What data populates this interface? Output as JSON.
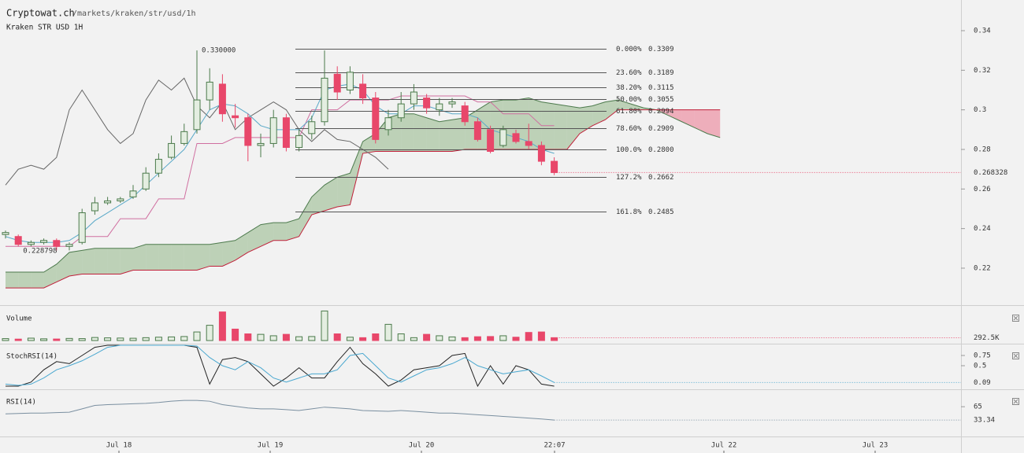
{
  "header": {
    "title": "Cryptowat.ch",
    "path": "/markets/kraken/str/usd/1h",
    "subtitle": "Kraken STR USD 1H"
  },
  "time_axis": {
    "labels": [
      "Jul 18",
      "Jul 19",
      "Jul 20",
      "22:07",
      "Jul 22",
      "Jul 23"
    ]
  },
  "chart_data": [
    {
      "type": "candlestick",
      "ylim": [
        0.2033,
        0.3555
      ],
      "yticks": [
        0.22,
        0.24,
        0.26,
        0.28,
        0.3,
        0.32,
        0.34
      ],
      "open": [
        0.237,
        0.236,
        0.232,
        0.233,
        0.234,
        0.231,
        0.233,
        0.249,
        0.253,
        0.254,
        0.256,
        0.26,
        0.268,
        0.276,
        0.283,
        0.29,
        0.305,
        0.313,
        0.297,
        0.296,
        0.282,
        0.283,
        0.296,
        0.281,
        0.288,
        0.294,
        0.318,
        0.31,
        0.313,
        0.306,
        0.29,
        0.296,
        0.303,
        0.306,
        0.3,
        0.303,
        0.302,
        0.294,
        0.29,
        0.282,
        0.288,
        0.284,
        0.282,
        0.274
      ],
      "close": [
        0.238,
        0.232,
        0.233,
        0.234,
        0.231,
        0.232,
        0.248,
        0.253,
        0.254,
        0.255,
        0.259,
        0.268,
        0.275,
        0.283,
        0.289,
        0.305,
        0.314,
        0.298,
        0.296,
        0.282,
        0.283,
        0.296,
        0.281,
        0.287,
        0.294,
        0.316,
        0.309,
        0.319,
        0.306,
        0.285,
        0.296,
        0.303,
        0.309,
        0.301,
        0.303,
        0.304,
        0.294,
        0.285,
        0.279,
        0.29,
        0.284,
        0.282,
        0.274,
        0.2683
      ],
      "high": [
        0.239,
        0.237,
        0.234,
        0.235,
        0.235,
        0.233,
        0.25,
        0.256,
        0.256,
        0.256,
        0.262,
        0.271,
        0.278,
        0.287,
        0.293,
        0.33,
        0.321,
        0.318,
        0.303,
        0.298,
        0.288,
        0.3,
        0.298,
        0.29,
        0.297,
        0.33,
        0.322,
        0.322,
        0.318,
        0.309,
        0.3,
        0.309,
        0.313,
        0.308,
        0.306,
        0.306,
        0.304,
        0.296,
        0.292,
        0.292,
        0.29,
        0.293,
        0.284,
        0.276
      ],
      "low": [
        0.235,
        0.231,
        0.231,
        0.232,
        0.229,
        0.229,
        0.232,
        0.247,
        0.252,
        0.253,
        0.255,
        0.259,
        0.266,
        0.275,
        0.282,
        0.288,
        0.3,
        0.294,
        0.291,
        0.274,
        0.276,
        0.281,
        0.279,
        0.279,
        0.285,
        0.292,
        0.305,
        0.308,
        0.303,
        0.283,
        0.287,
        0.294,
        0.3,
        0.298,
        0.297,
        0.301,
        0.292,
        0.284,
        0.278,
        0.281,
        0.283,
        0.28,
        0.272,
        0.267
      ],
      "up_color": "#4b7a4b",
      "up_fill": "#e4eee1",
      "down_color": "#e8476a",
      "span_a": [
        0.218,
        0.218,
        0.218,
        0.218,
        0.222,
        0.228,
        0.229,
        0.23,
        0.23,
        0.23,
        0.23,
        0.232,
        0.232,
        0.232,
        0.232,
        0.232,
        0.232,
        0.233,
        0.234,
        0.238,
        0.242,
        0.243,
        0.243,
        0.245,
        0.256,
        0.262,
        0.266,
        0.268,
        0.284,
        0.288,
        0.296,
        0.298,
        0.298,
        0.296,
        0.294,
        0.295,
        0.296,
        0.3,
        0.304,
        0.305,
        0.305,
        0.306,
        0.304,
        0.303,
        0.302,
        0.301,
        0.302,
        0.304,
        0.305,
        0.303,
        0.301,
        0.3,
        0.297,
        0.294,
        0.291,
        0.288,
        0.286
      ],
      "span_b": [
        0.21,
        0.21,
        0.21,
        0.21,
        0.213,
        0.216,
        0.217,
        0.217,
        0.217,
        0.217,
        0.219,
        0.219,
        0.219,
        0.219,
        0.219,
        0.219,
        0.221,
        0.221,
        0.224,
        0.228,
        0.231,
        0.234,
        0.234,
        0.236,
        0.247,
        0.249,
        0.251,
        0.252,
        0.278,
        0.279,
        0.279,
        0.279,
        0.279,
        0.279,
        0.279,
        0.279,
        0.28,
        0.28,
        0.28,
        0.28,
        0.28,
        0.28,
        0.28,
        0.28,
        0.28,
        0.288,
        0.292,
        0.295,
        0.3,
        0.3,
        0.3,
        0.3,
        0.3,
        0.3,
        0.3,
        0.3,
        0.3
      ],
      "tenkan": [
        0.236,
        0.234,
        0.233,
        0.233,
        0.233,
        0.234,
        0.238,
        0.244,
        0.248,
        0.252,
        0.256,
        0.262,
        0.268,
        0.274,
        0.28,
        0.29,
        0.3,
        0.303,
        0.302,
        0.298,
        0.292,
        0.29,
        0.29,
        0.29,
        0.296,
        0.31,
        0.312,
        0.313,
        0.31,
        0.302,
        0.298,
        0.298,
        0.302,
        0.302,
        0.3,
        0.298,
        0.298,
        0.296,
        0.29,
        0.288,
        0.286,
        0.284,
        0.28,
        0.278
      ],
      "kijun": [
        0.231,
        0.231,
        0.231,
        0.231,
        0.231,
        0.231,
        0.236,
        0.236,
        0.236,
        0.245,
        0.245,
        0.245,
        0.255,
        0.255,
        0.255,
        0.283,
        0.283,
        0.283,
        0.286,
        0.286,
        0.286,
        0.286,
        0.286,
        0.286,
        0.3,
        0.3,
        0.3,
        0.305,
        0.305,
        0.305,
        0.305,
        0.307,
        0.307,
        0.307,
        0.307,
        0.307,
        0.307,
        0.304,
        0.304,
        0.298,
        0.298,
        0.298,
        0.292,
        0.292
      ],
      "chikou": [
        0.262,
        0.27,
        0.272,
        0.27,
        0.276,
        0.3,
        0.31,
        0.3,
        0.29,
        0.283,
        0.288,
        0.305,
        0.315,
        0.31,
        0.316,
        0.302,
        0.296,
        0.304,
        0.29,
        0.296,
        0.3,
        0.304,
        0.3,
        0.29,
        0.284,
        0.29,
        0.285,
        0.284,
        0.28,
        0.276,
        0.27
      ],
      "fib_levels": [
        {
          "pct": "0.000%",
          "price": 0.3309
        },
        {
          "pct": "23.60%",
          "price": 0.3189
        },
        {
          "pct": "38.20%",
          "price": 0.3115
        },
        {
          "pct": "50.00%",
          "price": 0.3055
        },
        {
          "pct": "61.80%",
          "price": 0.2994
        },
        {
          "pct": "78.60%",
          "price": 0.2909
        },
        {
          "pct": "100.0%",
          "price": {
            "value": 0.28,
            "label": "0.2800"
          }
        },
        {
          "pct": "127.2%",
          "price": 0.2662
        },
        {
          "pct": "161.8%",
          "price": 0.2485
        }
      ],
      "high_annotation": {
        "value": 0.33,
        "label": "0.330000"
      },
      "low_annotation": 0.228798,
      "last": 0.268328
    },
    {
      "type": "bar",
      "label": "Volume",
      "ylim": [
        0,
        3300
      ],
      "values": [
        200,
        150,
        250,
        180,
        160,
        220,
        200,
        320,
        280,
        260,
        240,
        300,
        350,
        380,
        420,
        900,
        1600,
        3000,
        1200,
        700,
        650,
        500,
        650,
        400,
        420,
        3100,
        700,
        350,
        300,
        700,
        1700,
        700,
        300,
        650,
        500,
        380,
        300,
        400,
        420,
        500,
        350,
        850,
        900,
        300
      ],
      "last": {
        "value": 292.5,
        "label": "292.5K"
      }
    },
    {
      "type": "line",
      "label": "StochRSI(14)",
      "ylim": [
        0,
        1
      ],
      "yticks": [
        0.75,
        0.5
      ],
      "series": [
        {
          "color": "#222222",
          "values": [
            0,
            0,
            0.1,
            0.4,
            0.6,
            0.55,
            0.75,
            0.95,
            1,
            1,
            1,
            1,
            1,
            1,
            1,
            0.95,
            0.05,
            0.65,
            0.7,
            0.6,
            0.3,
            0,
            0.2,
            0.45,
            0.2,
            0.2,
            0.6,
            0.95,
            0.55,
            0.3,
            0,
            0.15,
            0.4,
            0.45,
            0.5,
            0.75,
            0.8,
            0,
            0.5,
            0.05,
            0.5,
            0.4,
            0.05,
            0
          ]
        },
        {
          "color": "#4aa8d0",
          "values": [
            0.05,
            0.02,
            0.05,
            0.2,
            0.4,
            0.5,
            0.62,
            0.78,
            0.95,
            1,
            1,
            1,
            1,
            1,
            1,
            0.98,
            0.7,
            0.5,
            0.4,
            0.6,
            0.45,
            0.2,
            0.1,
            0.2,
            0.3,
            0.3,
            0.4,
            0.75,
            0.8,
            0.5,
            0.2,
            0.1,
            0.25,
            0.4,
            0.45,
            0.55,
            0.7,
            0.5,
            0.4,
            0.3,
            0.35,
            0.4,
            0.25,
            0.09
          ]
        }
      ],
      "last": 0.09
    },
    {
      "type": "line",
      "label": "RSI(14)",
      "ylim": [
        0,
        97
      ],
      "yticks": [
        65
      ],
      "series": [
        {
          "color": "#7a8fa0",
          "values": [
            48,
            49,
            50,
            50,
            51,
            52,
            60,
            68,
            70,
            71,
            72,
            73,
            75,
            78,
            80,
            80,
            78,
            70,
            66,
            62,
            60,
            60,
            58,
            56,
            60,
            64,
            62,
            60,
            56,
            55,
            54,
            56,
            54,
            52,
            50,
            50,
            48,
            46,
            44,
            42,
            40,
            38,
            36,
            33.34
          ]
        }
      ],
      "last": 33.34
    }
  ]
}
